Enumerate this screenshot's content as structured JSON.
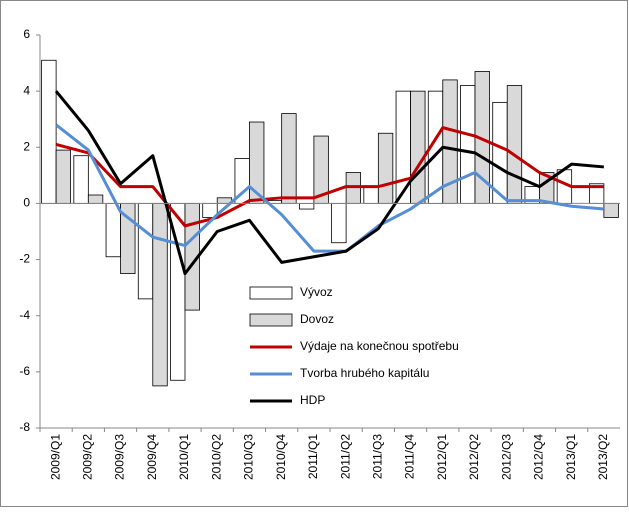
{
  "chart_data": {
    "type": "bar-line",
    "categories": [
      "2009/Q1",
      "2009/Q2",
      "2009/Q3",
      "2009/Q4",
      "2010/Q1",
      "2010/Q2",
      "2010/Q3",
      "2010/Q4",
      "2011/Q1",
      "2011/Q2",
      "2011/Q3",
      "2011/Q4",
      "2012/Q1",
      "2012/Q2",
      "2012/Q3",
      "2012/Q4",
      "2013/Q1",
      "2013/Q2"
    ],
    "series": [
      {
        "name": "Vývoz",
        "kind": "bar",
        "color": "#ffffff",
        "values": [
          5.1,
          1.7,
          -1.9,
          -3.4,
          -6.3,
          -0.5,
          1.6,
          0.1,
          -0.2,
          -1.4,
          0.6,
          4.0,
          4.0,
          4.2,
          3.6,
          0.6,
          1.2,
          0.7
        ]
      },
      {
        "name": "Dovoz",
        "kind": "bar",
        "color": "#d9d9d9",
        "values": [
          1.9,
          0.3,
          -2.5,
          -6.5,
          -3.8,
          0.2,
          2.9,
          3.2,
          2.4,
          1.1,
          2.5,
          4.0,
          4.4,
          4.7,
          4.2,
          1.1,
          0.0,
          -0.5
        ]
      },
      {
        "name": "Výdaje na konečnou spotřebu",
        "kind": "line",
        "color": "#c00000",
        "values": [
          2.1,
          1.8,
          0.6,
          0.6,
          -0.8,
          -0.5,
          0.1,
          0.2,
          0.2,
          0.6,
          0.6,
          0.9,
          2.7,
          2.4,
          1.9,
          1.1,
          0.6,
          0.6
        ]
      },
      {
        "name": "Tvorba hrubého kapitálu",
        "kind": "line",
        "color": "#558ed5",
        "values": [
          2.8,
          1.9,
          -0.3,
          -1.2,
          -1.5,
          -0.4,
          0.6,
          -0.4,
          -1.7,
          -1.7,
          -0.8,
          -0.2,
          0.6,
          1.1,
          0.1,
          0.1,
          -0.1,
          -0.2
        ]
      },
      {
        "name": "HDP",
        "kind": "line",
        "color": "#000000",
        "values": [
          4.0,
          2.6,
          0.7,
          1.7,
          -2.5,
          -1.0,
          -0.6,
          -2.1,
          -1.9,
          -1.7,
          -0.9,
          0.8,
          2.0,
          1.8,
          1.1,
          0.6,
          1.4,
          1.3
        ]
      }
    ],
    "ylim": [
      -8,
      6
    ],
    "yticks": [
      -8,
      -6,
      -4,
      -2,
      0,
      2,
      4,
      6
    ],
    "grid": false
  }
}
